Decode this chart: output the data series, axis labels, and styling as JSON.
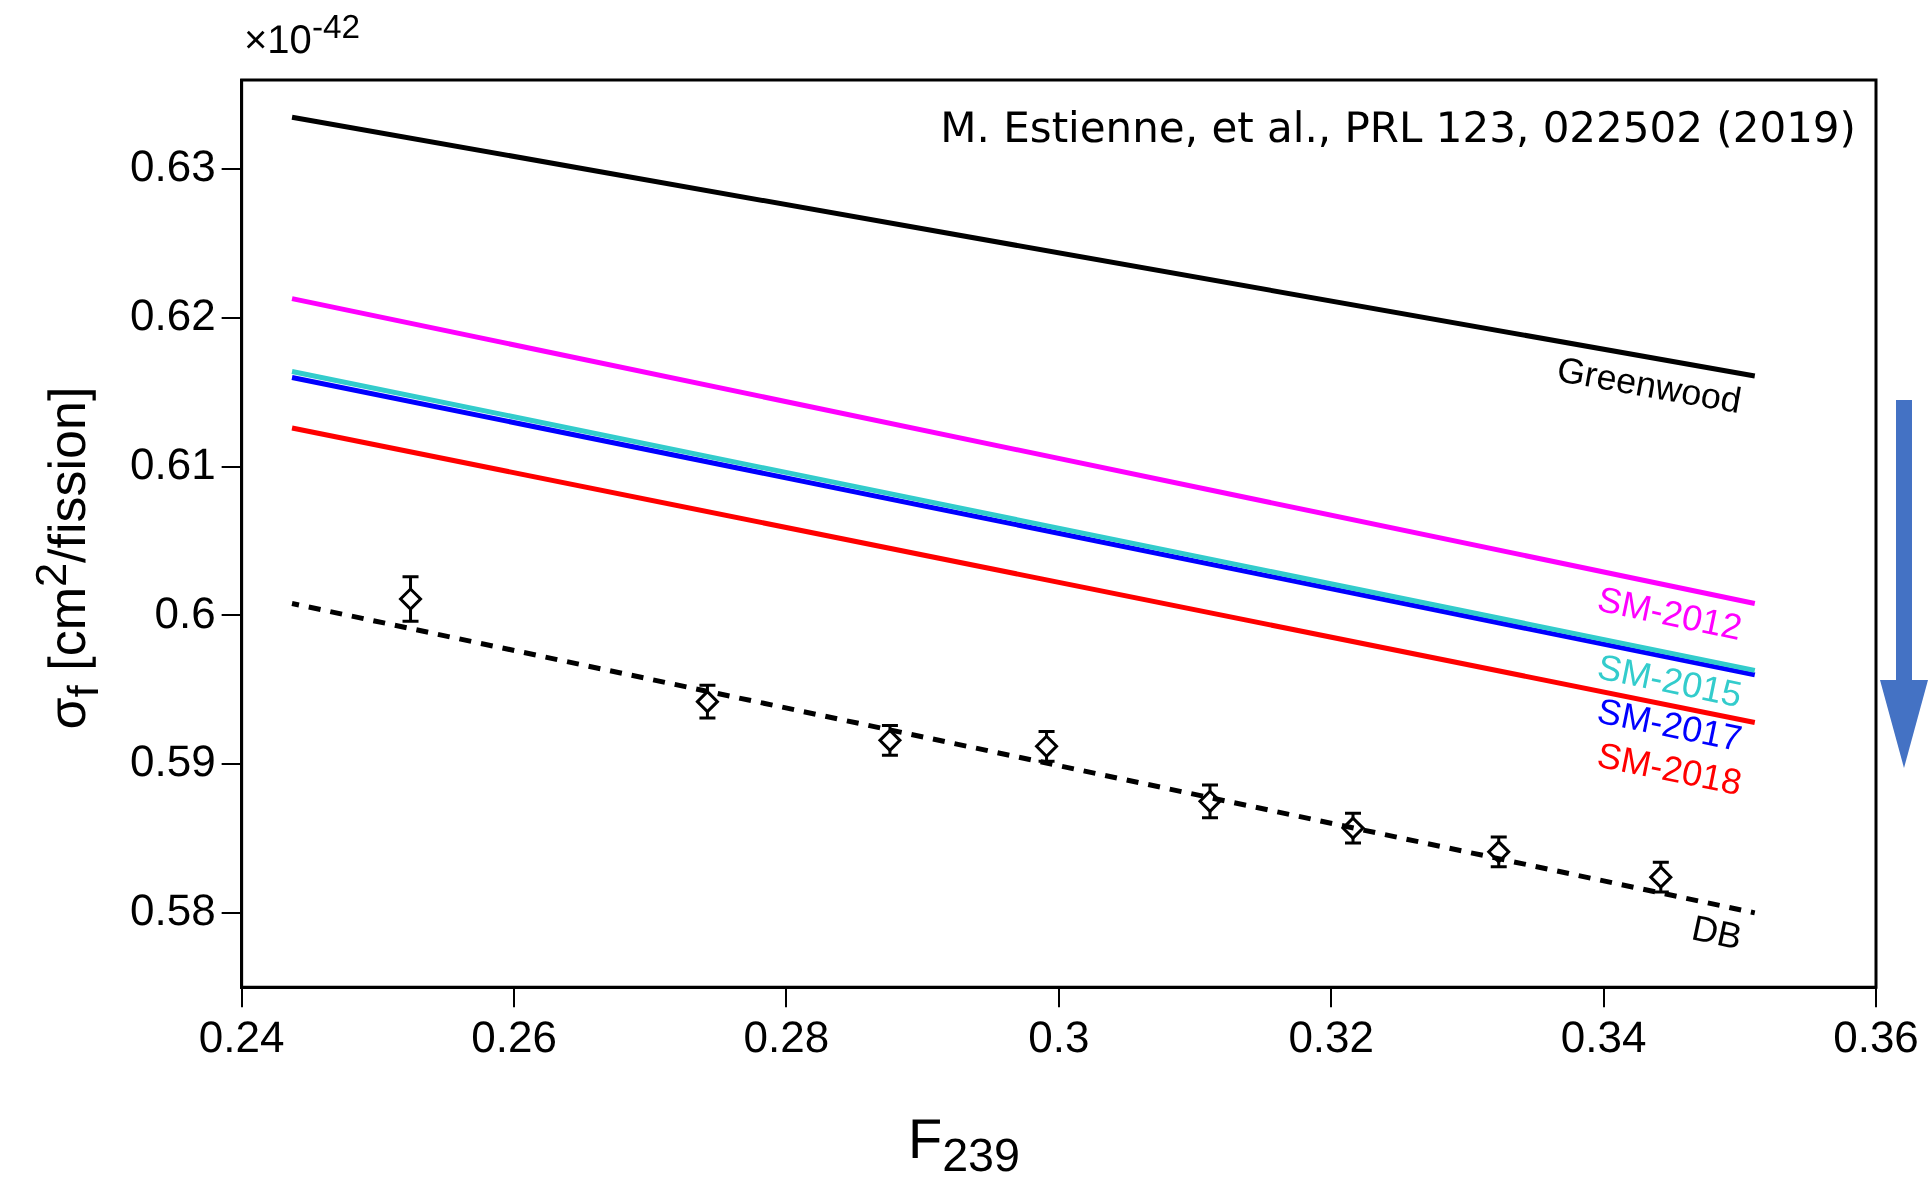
{
  "chart_data": {
    "type": "line",
    "xlabel": "F$_{239}$",
    "ylabel": "σ$_{f}$ [cm$^{2}$/fission]",
    "annotations": [
      "×10$^{-42}$",
      "M. Estienne, et al., PRL 123, 022502 (2019)"
    ],
    "xlim": [
      0.24,
      0.36
    ],
    "ylim": [
      0.575,
      0.636
    ],
    "xticks": [
      0.24,
      0.26,
      0.28,
      0.3,
      0.32,
      0.34,
      0.36
    ],
    "yticks": [
      0.58,
      0.59,
      0.6,
      0.61,
      0.62,
      0.63
    ],
    "grid": false,
    "legend": false,
    "series": [
      {
        "name": "Greenwood",
        "color": "#000000",
        "x": [
          0.2437,
          0.3511
        ],
        "values": [
          0.6335,
          0.6161
        ]
      },
      {
        "name": "SM-2012",
        "color": "#ff00ff",
        "x": [
          0.2437,
          0.3511
        ],
        "values": [
          0.6213,
          0.6008
        ]
      },
      {
        "name": "SM-2015",
        "color": "#33cccc",
        "x": [
          0.2437,
          0.3511
        ],
        "values": [
          0.6164,
          0.5963
        ]
      },
      {
        "name": "SM-2017",
        "color": "#0000ff",
        "x": [
          0.2437,
          0.3511
        ],
        "values": [
          0.616,
          0.596
        ]
      },
      {
        "name": "SM-2018",
        "color": "#ff0000",
        "x": [
          0.2437,
          0.3511
        ],
        "values": [
          0.6126,
          0.5928
        ]
      },
      {
        "name": "DB",
        "color": "#000000",
        "line_style": "dashed",
        "x": [
          0.2437,
          0.3511
        ],
        "values": [
          0.6008,
          0.58
        ]
      },
      {
        "type": "scatter",
        "color": "#000000",
        "marker": "diamond",
        "x": [
          0.2524,
          0.2742,
          0.2876,
          0.2991,
          0.3111,
          0.3216,
          0.3323,
          0.3442
        ],
        "values": [
          0.6011,
          0.5942,
          0.5916,
          0.5912,
          0.5875,
          0.5857,
          0.5841,
          0.5824
        ],
        "errors": [
          0.0015,
          0.0011,
          0.001,
          0.001,
          0.0011,
          0.001,
          0.001,
          0.001
        ]
      }
    ]
  }
}
